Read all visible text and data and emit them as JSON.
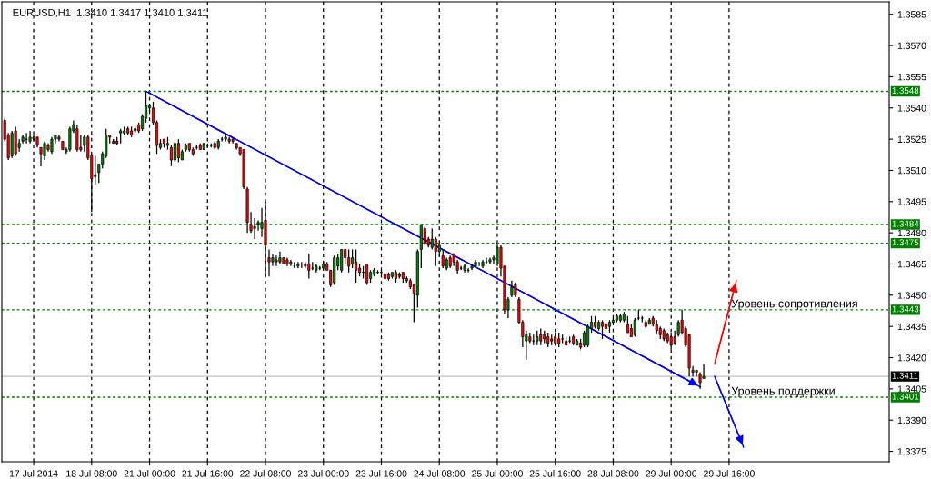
{
  "chart_data": {
    "type": "candlestick",
    "title": "EURUSD,H1  1.3410 1.3417 1.3410 1.3411",
    "categories": [
      null,
      null,
      null,
      null,
      null,
      null,
      null,
      null,
      "17 Jul 2014",
      null,
      null,
      null,
      null,
      null,
      null,
      null,
      null,
      null,
      null,
      null,
      null,
      null,
      null,
      null,
      "18 Jul 08:00",
      null,
      null,
      null,
      null,
      null,
      null,
      null,
      null,
      null,
      null,
      null,
      null,
      null,
      null,
      null,
      "21 Jul 00:00",
      null,
      null,
      null,
      null,
      null,
      null,
      null,
      null,
      null,
      null,
      null,
      null,
      null,
      null,
      null,
      "21 Jul 16:00",
      null,
      null,
      null,
      null,
      null,
      null,
      null,
      null,
      null,
      null,
      null,
      null,
      null,
      null,
      null,
      "22 Jul 08:00",
      null,
      null,
      null,
      null,
      null,
      null,
      null,
      null,
      null,
      null,
      null,
      null,
      null,
      null,
      null,
      "23 Jul 00:00",
      null,
      null,
      null,
      null,
      null,
      null,
      null,
      null,
      null,
      null,
      null,
      null,
      null,
      null,
      null,
      "23 Jul 16:00",
      null,
      null,
      null,
      null,
      null,
      null,
      null,
      null,
      null,
      null,
      null,
      null,
      null,
      null,
      null,
      "24 Jul 08:00",
      null,
      null,
      null,
      null,
      null,
      null,
      null,
      null,
      null,
      null,
      null,
      null,
      null,
      null,
      null,
      "25 Jul 00:00",
      null,
      null,
      null,
      null,
      null,
      null,
      null,
      null,
      null,
      null,
      null,
      null,
      null,
      null,
      null,
      "25 Jul 16:00",
      null,
      null,
      null,
      null,
      null,
      null,
      null,
      null,
      null,
      null,
      null,
      null,
      null,
      null,
      null,
      "28 Jul 08:00",
      null,
      null,
      null,
      null,
      null,
      null,
      null,
      null,
      null,
      null,
      null,
      null,
      null,
      null,
      null,
      "29 Jul 00:00",
      null,
      null,
      null,
      null,
      null,
      null,
      null,
      null,
      null,
      null,
      null,
      null,
      null,
      null,
      null,
      "29 Jul 16:00",
      null,
      null,
      null,
      null,
      null,
      null,
      null,
      null,
      null,
      null,
      null,
      null,
      null,
      null,
      null,
      null,
      null,
      null,
      null,
      null,
      null,
      null,
      null,
      null,
      null,
      null,
      null,
      null,
      null,
      null,
      null,
      null,
      null,
      null,
      null,
      null,
      null,
      null,
      null,
      null,
      null,
      null,
      null,
      null
    ],
    "ohlc": [
      [
        1.3534,
        1.3535,
        1.3524,
        1.3525
      ],
      [
        1.3527,
        1.3528,
        1.3515,
        1.3516
      ],
      [
        1.3517,
        1.3529,
        1.3516,
        1.3528
      ],
      [
        1.3529,
        1.3531,
        1.3517,
        1.3518
      ],
      [
        1.3521,
        1.3525,
        1.3519,
        1.3523
      ],
      [
        1.3524,
        1.3527,
        1.3523,
        1.3526
      ],
      [
        1.3525,
        1.3528,
        1.3523,
        1.3525
      ],
      [
        1.3524,
        1.3529,
        1.3523,
        1.3526
      ],
      [
        1.3526,
        1.3527,
        1.3524,
        1.3525
      ],
      [
        1.3526,
        1.3526,
        1.3521,
        1.3522
      ],
      [
        1.3521,
        1.3521,
        1.3512,
        1.3518
      ],
      [
        1.3517,
        1.3524,
        1.3515,
        1.3523
      ],
      [
        1.3522,
        1.3523,
        1.3519,
        1.352
      ],
      [
        1.3519,
        1.3526,
        1.3518,
        1.3525
      ],
      [
        1.3525,
        1.3527,
        1.3523,
        1.3527
      ],
      [
        1.3526,
        1.3527,
        1.3524,
        1.3525
      ],
      [
        1.3524,
        1.3524,
        1.352,
        1.352
      ],
      [
        1.3519,
        1.3521,
        1.3518,
        1.352
      ],
      [
        1.352,
        1.3531,
        1.3519,
        1.353
      ],
      [
        1.3529,
        1.3534,
        1.3528,
        1.3532
      ],
      [
        1.353,
        1.3532,
        1.3519,
        1.352
      ],
      [
        1.3521,
        1.3527,
        1.3519,
        1.352
      ],
      [
        1.3522,
        1.3527,
        1.3519,
        1.3526
      ],
      [
        1.3526,
        1.3527,
        1.3515,
        1.3516
      ],
      [
        1.3517,
        1.3517,
        1.349,
        1.3506
      ],
      [
        1.3507,
        1.3517,
        1.3503,
        1.3508
      ],
      [
        1.3509,
        1.3513,
        1.3504,
        1.3513
      ],
      [
        1.3513,
        1.3519,
        1.3511,
        1.3518
      ],
      [
        1.3517,
        1.353,
        1.3516,
        1.3527
      ],
      [
        1.3527,
        1.3527,
        1.3523,
        1.3526
      ],
      [
        1.3524,
        1.3525,
        1.3523,
        1.3523
      ],
      [
        1.3524,
        1.3526,
        1.3522,
        1.3523
      ],
      [
        1.3528,
        1.353,
        1.3523,
        1.3529
      ],
      [
        1.3528,
        1.3531,
        1.3527,
        1.3529
      ],
      [
        1.353,
        1.3531,
        1.3527,
        1.3528
      ],
      [
        1.3529,
        1.3531,
        1.3526,
        1.3527
      ],
      [
        1.3529,
        1.3531,
        1.3528,
        1.353
      ],
      [
        1.3532,
        1.3533,
        1.3528,
        1.3529
      ],
      [
        1.353,
        1.3537,
        1.3529,
        1.3536
      ],
      [
        1.3535,
        1.3548,
        1.3533,
        1.3541
      ],
      [
        1.354,
        1.3542,
        1.3538,
        1.3541
      ],
      [
        1.354,
        1.3543,
        1.3532,
        1.3533
      ],
      [
        1.3533,
        1.3534,
        1.3518,
        1.3522
      ],
      [
        1.3521,
        1.3525,
        1.352,
        1.3523
      ],
      [
        1.3525,
        1.3525,
        1.3521,
        1.3523
      ],
      [
        1.3522,
        1.3526,
        1.352,
        1.3523
      ],
      [
        1.3521,
        1.3522,
        1.3512,
        1.3515
      ],
      [
        1.3515,
        1.3524,
        1.3514,
        1.3523
      ],
      [
        1.3523,
        1.3525,
        1.3514,
        1.3516
      ],
      [
        1.3515,
        1.352,
        1.3515,
        1.3519
      ],
      [
        1.352,
        1.3523,
        1.3519,
        1.3522
      ],
      [
        1.3523,
        1.3523,
        1.3519,
        1.352
      ],
      [
        1.352,
        1.3521,
        1.3517,
        1.3518
      ],
      [
        1.3521,
        1.3522,
        1.352,
        1.3521
      ],
      [
        1.3522,
        1.3523,
        1.352,
        1.352
      ],
      [
        1.352,
        1.3523,
        1.352,
        1.3523
      ],
      [
        1.3522,
        1.3523,
        1.3521,
        1.3522
      ],
      [
        1.3522,
        1.3523,
        1.3521,
        1.3522
      ],
      [
        1.3523,
        1.3524,
        1.352,
        1.3521
      ],
      [
        1.3521,
        1.3525,
        1.352,
        1.3524
      ],
      [
        1.3525,
        1.3526,
        1.3524,
        1.3525
      ],
      [
        1.3525,
        1.3528,
        1.3524,
        1.3526
      ],
      [
        1.3525,
        1.3526,
        1.3523,
        1.3524
      ],
      [
        1.3525,
        1.3526,
        1.3523,
        1.3524
      ],
      [
        1.3523,
        1.3523,
        1.352,
        1.3521
      ],
      [
        1.3521,
        1.3521,
        1.3517,
        1.3518
      ],
      [
        1.352,
        1.352,
        1.3501,
        1.3502
      ],
      [
        1.3501,
        1.3502,
        1.348,
        1.3485
      ],
      [
        1.3484,
        1.349,
        1.348,
        1.3481
      ],
      [
        1.3482,
        1.3487,
        1.3477,
        1.3483
      ],
      [
        1.3484,
        1.3486,
        1.3481,
        1.3485
      ],
      [
        1.3482,
        1.3492,
        1.3478,
        1.3485
      ],
      [
        1.3486,
        1.3495,
        1.3459,
        1.3474
      ],
      [
        1.3468,
        1.3472,
        1.3459,
        1.3466
      ],
      [
        1.3466,
        1.347,
        1.3464,
        1.3468
      ],
      [
        1.3467,
        1.3469,
        1.3464,
        1.3466
      ],
      [
        1.3466,
        1.3471,
        1.3465,
        1.3468
      ],
      [
        1.3468,
        1.3468,
        1.3465,
        1.3465
      ],
      [
        1.3467,
        1.3468,
        1.3464,
        1.3465
      ],
      [
        1.3465,
        1.3467,
        1.3464,
        1.3466
      ],
      [
        1.3464,
        1.3466,
        1.3463,
        1.3464
      ],
      [
        1.3464,
        1.3466,
        1.3463,
        1.3465
      ],
      [
        1.3465,
        1.3466,
        1.3463,
        1.3465
      ],
      [
        1.3465,
        1.3466,
        1.3463,
        1.3464
      ],
      [
        1.3465,
        1.347,
        1.3458,
        1.3462
      ],
      [
        1.3463,
        1.3466,
        1.3462,
        1.3463
      ],
      [
        1.3462,
        1.3465,
        1.3461,
        1.3464
      ],
      [
        1.3463,
        1.3464,
        1.3462,
        1.3463
      ],
      [
        1.3463,
        1.3466,
        1.3463,
        1.3465
      ],
      [
        1.3465,
        1.3466,
        1.3462,
        1.3462
      ],
      [
        1.3462,
        1.3462,
        1.3454,
        1.3455
      ],
      [
        1.3456,
        1.3469,
        1.3455,
        1.3468
      ],
      [
        1.3464,
        1.347,
        1.3462,
        1.3468
      ],
      [
        1.3462,
        1.3472,
        1.3461,
        1.3472
      ],
      [
        1.3472,
        1.3472,
        1.3465,
        1.3468
      ],
      [
        1.3468,
        1.3472,
        1.3461,
        1.3464
      ],
      [
        1.3465,
        1.3472,
        1.3463,
        1.3468
      ],
      [
        1.3466,
        1.3472,
        1.3456,
        1.3462
      ],
      [
        1.3463,
        1.3465,
        1.3459,
        1.3461
      ],
      [
        1.3461,
        1.3464,
        1.3458,
        1.3461
      ],
      [
        1.3465,
        1.3465,
        1.3455,
        1.3456
      ],
      [
        1.3458,
        1.3462,
        1.3456,
        1.3461
      ],
      [
        1.346,
        1.3463,
        1.3459,
        1.3462
      ],
      [
        1.3461,
        1.3462,
        1.346,
        1.3461
      ],
      [
        1.3461,
        1.3462,
        1.346,
        1.3461
      ],
      [
        1.346,
        1.3461,
        1.3458,
        1.3458
      ],
      [
        1.346,
        1.3461,
        1.3457,
        1.3458
      ],
      [
        1.3459,
        1.3461,
        1.3458,
        1.3461
      ],
      [
        1.3461,
        1.3462,
        1.3456,
        1.3458
      ],
      [
        1.3459,
        1.3461,
        1.3458,
        1.346
      ],
      [
        1.3461,
        1.3461,
        1.3456,
        1.3458
      ],
      [
        1.3458,
        1.3459,
        1.3456,
        1.3457
      ],
      [
        1.3457,
        1.3458,
        1.3453,
        1.3454
      ],
      [
        1.3455,
        1.3455,
        1.3437,
        1.3451
      ],
      [
        1.345,
        1.3472,
        1.3444,
        1.3471
      ],
      [
        1.3472,
        1.3484,
        1.3463,
        1.3484
      ],
      [
        1.3482,
        1.3483,
        1.3474,
        1.3475
      ],
      [
        1.3477,
        1.3478,
        1.3473,
        1.3474
      ],
      [
        1.3473,
        1.3482,
        1.3472,
        1.3477
      ],
      [
        1.3477,
        1.3478,
        1.3464,
        1.3471
      ],
      [
        1.3471,
        1.3475,
        1.3469,
        1.3474
      ],
      [
        1.3469,
        1.3472,
        1.3463,
        1.3464
      ],
      [
        1.3463,
        1.3468,
        1.3462,
        1.3467
      ],
      [
        1.3468,
        1.3469,
        1.3463,
        1.3464
      ],
      [
        1.347,
        1.347,
        1.3464,
        1.3466
      ],
      [
        1.3466,
        1.3467,
        1.346,
        1.3462
      ],
      [
        1.3463,
        1.3464,
        1.3462,
        1.3463
      ],
      [
        1.3462,
        1.3465,
        1.3461,
        1.3464
      ],
      [
        1.3462,
        1.3463,
        1.3461,
        1.3462
      ],
      [
        1.3463,
        1.3465,
        1.3462,
        1.3464
      ],
      [
        1.3464,
        1.3467,
        1.3463,
        1.3466
      ],
      [
        1.3465,
        1.3466,
        1.3464,
        1.3465
      ],
      [
        1.3464,
        1.3467,
        1.3463,
        1.3466
      ],
      [
        1.3466,
        1.3468,
        1.3465,
        1.3466
      ],
      [
        1.3466,
        1.3468,
        1.3465,
        1.3467
      ],
      [
        1.3467,
        1.3469,
        1.3465,
        1.3468
      ],
      [
        1.3465,
        1.3475,
        1.3464,
        1.3473
      ],
      [
        1.3473,
        1.3474,
        1.3459,
        1.3463
      ],
      [
        1.3464,
        1.3464,
        1.3441,
        1.3443
      ],
      [
        1.3443,
        1.3449,
        1.3439,
        1.3448
      ],
      [
        1.345,
        1.3457,
        1.3449,
        1.3454
      ],
      [
        1.3455,
        1.3456,
        1.3449,
        1.345
      ],
      [
        1.3448,
        1.3449,
        1.3436,
        1.3437
      ],
      [
        1.3437,
        1.3438,
        1.3425,
        1.343
      ],
      [
        1.3428,
        1.3433,
        1.3419,
        1.3431
      ],
      [
        1.343,
        1.3432,
        1.3427,
        1.3428
      ],
      [
        1.3428,
        1.3431,
        1.3426,
        1.3428
      ],
      [
        1.3428,
        1.3433,
        1.3426,
        1.343
      ],
      [
        1.3431,
        1.3434,
        1.3426,
        1.3428
      ],
      [
        1.3431,
        1.3433,
        1.3427,
        1.3429
      ],
      [
        1.343,
        1.3432,
        1.3425,
        1.3427
      ],
      [
        1.3429,
        1.3431,
        1.3426,
        1.3428
      ],
      [
        1.343,
        1.3432,
        1.3426,
        1.3427
      ],
      [
        1.3429,
        1.3432,
        1.3425,
        1.3427
      ],
      [
        1.3429,
        1.3431,
        1.3427,
        1.3429
      ],
      [
        1.3428,
        1.343,
        1.3426,
        1.3426
      ],
      [
        1.3428,
        1.343,
        1.3427,
        1.3428
      ],
      [
        1.343,
        1.3431,
        1.3426,
        1.3427
      ],
      [
        1.3426,
        1.3429,
        1.3426,
        1.3428
      ],
      [
        1.3427,
        1.3429,
        1.3424,
        1.3425
      ],
      [
        1.3426,
        1.3433,
        1.3425,
        1.3432
      ],
      [
        1.3426,
        1.3436,
        1.3425,
        1.3435
      ],
      [
        1.3434,
        1.344,
        1.3432,
        1.3437
      ],
      [
        1.3437,
        1.344,
        1.3434,
        1.3435
      ],
      [
        1.3434,
        1.3438,
        1.3433,
        1.3437
      ],
      [
        1.3437,
        1.3438,
        1.3429,
        1.3435
      ],
      [
        1.3436,
        1.3437,
        1.3433,
        1.3434
      ],
      [
        1.3435,
        1.3438,
        1.3432,
        1.3437
      ],
      [
        1.3437,
        1.3439,
        1.3436,
        1.3438
      ],
      [
        1.3438,
        1.3441,
        1.3437,
        1.344
      ],
      [
        1.3438,
        1.3441,
        1.3437,
        1.344
      ],
      [
        1.3438,
        1.3442,
        1.3437,
        1.3441
      ],
      [
        1.3436,
        1.344,
        1.3432,
        1.3432
      ],
      [
        1.3434,
        1.3436,
        1.343,
        1.343
      ],
      [
        1.3431,
        1.3439,
        1.343,
        1.3438
      ],
      [
        1.3439,
        1.3443,
        1.3438,
        1.3439
      ],
      [
        1.3439,
        1.344,
        1.3437,
        1.3439
      ],
      [
        1.3437,
        1.3438,
        1.3434,
        1.3435
      ],
      [
        1.3436,
        1.3439,
        1.3436,
        1.3438
      ],
      [
        1.3439,
        1.344,
        1.3435,
        1.3436
      ],
      [
        1.3436,
        1.3438,
        1.3431,
        1.3433
      ],
      [
        1.3434,
        1.3435,
        1.3429,
        1.3431
      ],
      [
        1.3433,
        1.3434,
        1.3428,
        1.3429
      ],
      [
        1.3431,
        1.3432,
        1.3427,
        1.3428
      ],
      [
        1.343,
        1.3432,
        1.3424,
        1.3426
      ],
      [
        1.343,
        1.3433,
        1.3426,
        1.3427
      ],
      [
        1.3431,
        1.3438,
        1.343,
        1.3437
      ],
      [
        1.3438,
        1.3443,
        1.3431,
        1.3432
      ],
      [
        1.3434,
        1.3435,
        1.3425,
        1.3426
      ],
      [
        1.3431,
        1.3431,
        1.3411,
        1.3415
      ],
      [
        1.3414,
        1.3416,
        1.3411,
        1.3413
      ],
      [
        1.3413,
        1.3414,
        1.3411,
        1.3414
      ],
      [
        1.3412,
        1.3413,
        1.3405,
        1.3408
      ],
      [
        1.341,
        1.3417,
        1.341,
        1.3411
      ],
      null,
      null,
      null,
      null,
      null,
      null,
      null,
      null,
      null,
      null,
      null,
      null,
      null,
      null,
      null,
      null,
      null,
      null,
      null,
      null,
      null,
      null,
      null,
      null,
      null,
      null,
      null,
      null,
      null,
      null,
      null,
      null,
      null,
      null,
      null,
      null,
      null,
      null,
      null,
      null,
      null,
      null,
      null,
      null,
      null,
      null,
      null,
      null,
      null,
      null,
      null
    ],
    "series": [
      {
        "type": "line",
        "color": "#0000ff",
        "values": [
          null,
          null,
          null,
          null,
          null,
          null,
          null,
          null,
          null,
          null,
          null,
          null,
          null,
          null,
          null,
          null,
          null,
          null,
          null,
          null,
          null,
          null,
          null,
          null,
          null,
          null,
          null,
          null,
          null,
          null,
          null,
          null,
          null,
          null,
          null,
          null,
          null,
          null,
          null,
          1.3548,
          null,
          null,
          null,
          null,
          null,
          null,
          null,
          null,
          null,
          null,
          null,
          null,
          null,
          null,
          null,
          null,
          null,
          null,
          null,
          null,
          null,
          null,
          null,
          null,
          null,
          null,
          null,
          null,
          null,
          null,
          null,
          null,
          null,
          null,
          null,
          null,
          null,
          null,
          null,
          null,
          null,
          null,
          null,
          null,
          null,
          null,
          null,
          null,
          null,
          null,
          null,
          null,
          null,
          null,
          null,
          null,
          null,
          null,
          null,
          null,
          null,
          null,
          null,
          null,
          null,
          null,
          null,
          null,
          null,
          null,
          null,
          null,
          null,
          null,
          null,
          null,
          null,
          null,
          null,
          null,
          null,
          null,
          null,
          null,
          null,
          null,
          null,
          null,
          null,
          null,
          null,
          null,
          null,
          null,
          null,
          null,
          null,
          null,
          null,
          null,
          null,
          null,
          null,
          null,
          null,
          null,
          null,
          null,
          null,
          null,
          null,
          null,
          null,
          null,
          null,
          null,
          null,
          null,
          null,
          null,
          null,
          null,
          null,
          null,
          null,
          null,
          null,
          null,
          null,
          null,
          null,
          null,
          null,
          null,
          null,
          null,
          null,
          null,
          null,
          null,
          null,
          null,
          null,
          null,
          null,
          null,
          null,
          null,
          null,
          null,
          null,
          null,
          1.3406,
          null,
          null,
          null,
          null,
          null,
          null,
          null,
          null,
          null,
          null,
          null,
          null,
          null,
          null,
          null,
          null,
          null,
          null,
          null,
          null,
          null,
          null,
          null,
          null,
          null,
          null,
          null,
          null,
          null,
          null,
          null,
          null,
          null,
          null,
          null,
          null,
          null,
          null,
          null,
          null,
          null,
          null,
          null,
          null,
          null,
          null,
          null,
          null,
          null,
          null,
          null,
          null
        ]
      },
      {
        "type": "line",
        "color": "#ff0000",
        "values": [
          null,
          null,
          null,
          null,
          null,
          null,
          null,
          null,
          null,
          null,
          null,
          null,
          null,
          null,
          null,
          null,
          null,
          null,
          null,
          null,
          null,
          null,
          null,
          null,
          null,
          null,
          null,
          null,
          null,
          null,
          null,
          null,
          null,
          null,
          null,
          null,
          null,
          null,
          null,
          null,
          null,
          null,
          null,
          null,
          null,
          null,
          null,
          null,
          null,
          null,
          null,
          null,
          null,
          null,
          null,
          null,
          null,
          null,
          null,
          null,
          null,
          null,
          null,
          null,
          null,
          null,
          null,
          null,
          null,
          null,
          null,
          null,
          null,
          null,
          null,
          null,
          null,
          null,
          null,
          null,
          null,
          null,
          null,
          null,
          null,
          null,
          null,
          null,
          null,
          null,
          null,
          null,
          null,
          null,
          null,
          null,
          null,
          null,
          null,
          null,
          null,
          null,
          null,
          null,
          null,
          null,
          null,
          null,
          null,
          null,
          null,
          null,
          null,
          null,
          null,
          null,
          null,
          null,
          null,
          null,
          null,
          null,
          null,
          null,
          null,
          null,
          null,
          null,
          null,
          null,
          null,
          null,
          null,
          null,
          null,
          null,
          null,
          null,
          null,
          null,
          null,
          null,
          null,
          null,
          null,
          null,
          null,
          null,
          null,
          null,
          null,
          null,
          null,
          null,
          null,
          null,
          null,
          null,
          null,
          null,
          null,
          null,
          null,
          null,
          null,
          null,
          null,
          null,
          null,
          null,
          null,
          null,
          null,
          null,
          null,
          null,
          null,
          null,
          null,
          null,
          null,
          null,
          null,
          null,
          null,
          null,
          null,
          null,
          null,
          null,
          null,
          null,
          null,
          null,
          null,
          null,
          1.3417,
          null,
          null,
          null,
          null,
          null,
          1.3457,
          null,
          null,
          null,
          null,
          null,
          null,
          null,
          null,
          null,
          null,
          null,
          null,
          null,
          null,
          null,
          null,
          null,
          null,
          null,
          null,
          null,
          null,
          null,
          null,
          null,
          null,
          null,
          null,
          null,
          null,
          null,
          null,
          null,
          null,
          null,
          null,
          null,
          null,
          null,
          null,
          null,
          null
        ]
      },
      {
        "type": "line",
        "color": "#0000ff",
        "values": [
          null,
          null,
          null,
          null,
          null,
          null,
          null,
          null,
          null,
          null,
          null,
          null,
          null,
          null,
          null,
          null,
          null,
          null,
          null,
          null,
          null,
          null,
          null,
          null,
          null,
          null,
          null,
          null,
          null,
          null,
          null,
          null,
          null,
          null,
          null,
          null,
          null,
          null,
          null,
          null,
          null,
          null,
          null,
          null,
          null,
          null,
          null,
          null,
          null,
          null,
          null,
          null,
          null,
          null,
          null,
          null,
          null,
          null,
          null,
          null,
          null,
          null,
          null,
          null,
          null,
          null,
          null,
          null,
          null,
          null,
          null,
          null,
          null,
          null,
          null,
          null,
          null,
          null,
          null,
          null,
          null,
          null,
          null,
          null,
          null,
          null,
          null,
          null,
          null,
          null,
          null,
          null,
          null,
          null,
          null,
          null,
          null,
          null,
          null,
          null,
          null,
          null,
          null,
          null,
          null,
          null,
          null,
          null,
          null,
          null,
          null,
          null,
          null,
          null,
          null,
          null,
          null,
          null,
          null,
          null,
          null,
          null,
          null,
          null,
          null,
          null,
          null,
          null,
          null,
          null,
          null,
          null,
          null,
          null,
          null,
          null,
          null,
          null,
          null,
          null,
          null,
          null,
          null,
          null,
          null,
          null,
          null,
          null,
          null,
          null,
          null,
          null,
          null,
          null,
          null,
          null,
          null,
          null,
          null,
          null,
          null,
          null,
          null,
          null,
          null,
          null,
          null,
          null,
          null,
          null,
          null,
          null,
          null,
          null,
          null,
          null,
          null,
          null,
          null,
          null,
          null,
          null,
          null,
          null,
          null,
          null,
          null,
          null,
          null,
          null,
          null,
          null,
          null,
          null,
          null,
          null,
          1.3411,
          null,
          null,
          null,
          null,
          null,
          null,
          null,
          1.3377,
          null,
          null,
          null,
          null,
          null,
          null,
          null,
          null,
          null,
          null,
          null,
          null,
          null,
          null,
          null,
          null,
          null,
          null,
          null,
          null,
          null,
          null,
          null,
          null,
          null,
          null,
          null,
          null,
          null,
          null,
          null,
          null,
          null,
          null,
          null,
          null,
          null,
          null,
          null,
          null
        ]
      }
    ],
    "ylim": [
      1.337,
      1.3591
    ],
    "yticks": [
      {
        "value": 1.3375,
        "label": "1.3375"
      },
      {
        "value": 1.339,
        "label": "1.3390"
      },
      {
        "value": 1.3405,
        "label": "1.3405"
      },
      {
        "value": 1.342,
        "label": "1.3420"
      },
      {
        "value": 1.3435,
        "label": "1.3435"
      },
      {
        "value": 1.345,
        "label": "1.3450"
      },
      {
        "value": 1.3465,
        "label": "1.3465"
      },
      {
        "value": 1.348,
        "label": "1.3480"
      },
      {
        "value": 1.3495,
        "label": "1.3495"
      },
      {
        "value": 1.351,
        "label": "1.3510"
      },
      {
        "value": 1.3525,
        "label": "1.3525"
      },
      {
        "value": 1.354,
        "label": "1.3540"
      },
      {
        "value": 1.3555,
        "label": "1.3555"
      },
      {
        "value": 1.357,
        "label": "1.3570"
      },
      {
        "value": 1.3585,
        "label": "1.3585"
      }
    ],
    "grid": "x",
    "ref_lines": [
      {
        "axis": "y",
        "value": 1.3548,
        "label": "1.3548",
        "color": "#008000",
        "line_style": "dotted"
      },
      {
        "axis": "y",
        "value": 1.3484,
        "label": "1.3484",
        "color": "#008000",
        "line_style": "dotted"
      },
      {
        "axis": "y",
        "value": 1.3475,
        "label": "1.3475",
        "color": "#008000",
        "line_style": "dotted"
      },
      {
        "axis": "y",
        "value": 1.3443,
        "label": "1.3443",
        "color": "#008000",
        "line_style": "dotted"
      },
      {
        "axis": "y",
        "value": 1.3411,
        "label": "1.3411",
        "color": "#c0c0c0",
        "line_style": "solid"
      },
      {
        "axis": "y",
        "value": 1.3401,
        "label": "1.3401",
        "color": "#008000",
        "line_style": "dotted"
      }
    ],
    "annotations": [
      {
        "text": "Уровень сопротивления",
        "y": 1.3443
      },
      {
        "text": "Уровень поддержки",
        "y": 1.3401
      }
    ]
  }
}
